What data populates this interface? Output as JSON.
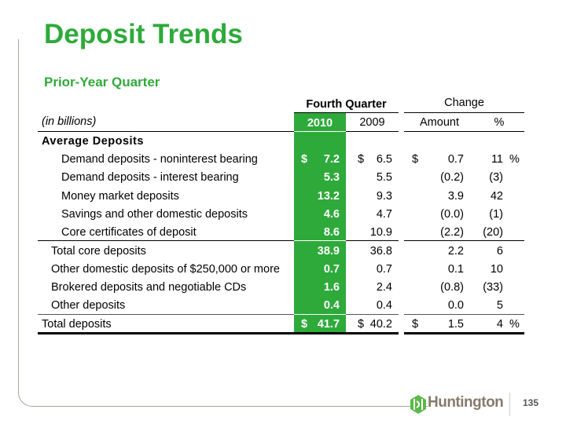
{
  "title": "Deposit Trends",
  "subtitle": "Prior-Year Quarter",
  "table": {
    "group_header_quarter": "Fourth Quarter",
    "group_header_change": "Change",
    "unit_label": "(in billions)",
    "col_2010": "2010",
    "col_2009": "2009",
    "col_amount": "Amount",
    "col_pct": "%",
    "section_label": "Average Deposits",
    "rows": [
      {
        "label": "Demand deposits - noninterest bearing",
        "indent": 2,
        "cur_sym": "$",
        "v2010": "7.2",
        "sym2009": "$",
        "v2009": "6.5",
        "amt_sym": "$",
        "amount": "0.7",
        "pct": "11",
        "pct_sym": "%"
      },
      {
        "label": "Demand deposits - interest bearing",
        "indent": 2,
        "v2010": "5.3",
        "v2009": "5.5",
        "amount": "(0.2)",
        "pct": "(3)"
      },
      {
        "label": "Money market deposits",
        "indent": 2,
        "v2010": "13.2",
        "v2009": "9.3",
        "amount": "3.9",
        "pct": "42"
      },
      {
        "label": "Savings and other domestic deposits",
        "indent": 2,
        "v2010": "4.6",
        "v2009": "4.7",
        "amount": "(0.0)",
        "pct": "(1)"
      },
      {
        "label": "Core certificates of deposit",
        "indent": 2,
        "v2010": "8.6",
        "v2009": "10.9",
        "amount": "(2.2)",
        "pct": "(20)"
      },
      {
        "label": "Total core deposits",
        "indent": 1,
        "v2010": "38.9",
        "v2009": "36.8",
        "amount": "2.2",
        "pct": "6"
      },
      {
        "label": "Other domestic deposits of $250,000 or more",
        "indent": 1,
        "v2010": "0.7",
        "v2009": "0.7",
        "amount": "0.1",
        "pct": "10"
      },
      {
        "label": "Brokered deposits and negotiable CDs",
        "indent": 1,
        "v2010": "1.6",
        "v2009": "2.4",
        "amount": "(0.8)",
        "pct": "(33)"
      },
      {
        "label": "Other deposits",
        "indent": 1,
        "v2010": "0.4",
        "v2009": "0.4",
        "amount": "0.0",
        "pct": "5"
      },
      {
        "label": "Total deposits",
        "indent": 0,
        "cur_sym": "$",
        "v2010": "41.7",
        "sym2009": "$",
        "v2009": "40.2",
        "amt_sym": "$",
        "amount": "1.5",
        "pct": "4",
        "pct_sym": "%"
      }
    ]
  },
  "footer": {
    "logo_text": "Huntington",
    "page_number": "135"
  },
  "colors": {
    "accent": "#2eaa3a",
    "frame": "#a9a49c",
    "logo": "#857b6c"
  }
}
